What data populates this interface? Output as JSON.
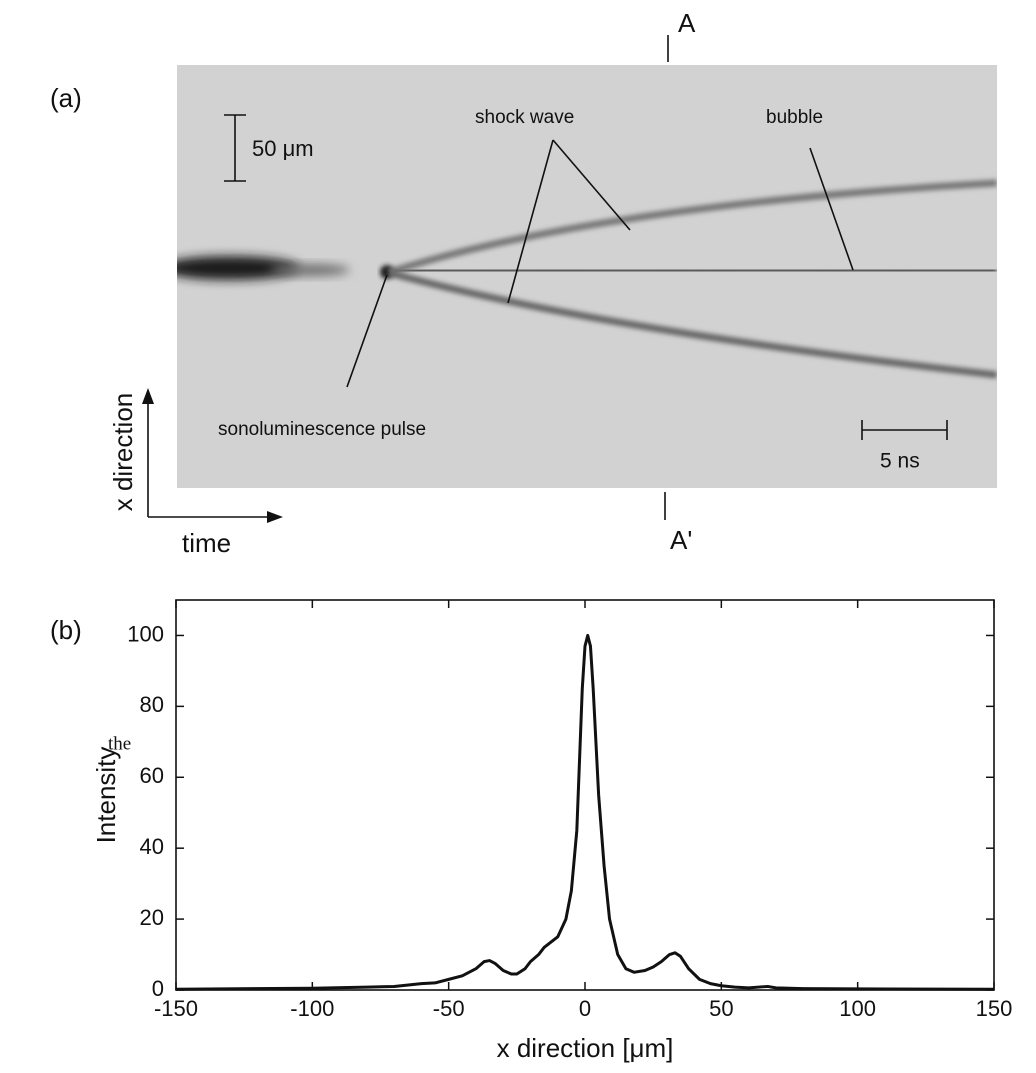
{
  "panel_a": {
    "label": "(a)",
    "marker_top": "A",
    "marker_bottom": "A'",
    "scale_length": "50 μm",
    "scale_time": "5 ns",
    "shock_wave": "shock wave",
    "bubble": "bubble",
    "pulse": "sonoluminescence pulse",
    "axis_x": "x direction",
    "axis_time": "time"
  },
  "margin_text": "the",
  "chart_data": {
    "type": "line",
    "panel_label": "(b)",
    "x_label": "x direction [μm]",
    "y_label": "Intensity",
    "color": "#111111",
    "x": [
      -150,
      -100,
      -80,
      -70,
      -60,
      -55,
      -50,
      -45,
      -40,
      -37,
      -35,
      -33,
      -30,
      -27,
      -25,
      -22,
      -20,
      -17,
      -15,
      -10,
      -7,
      -5,
      -3,
      -2,
      -1,
      0,
      1,
      2,
      3,
      4,
      5,
      7,
      9,
      12,
      15,
      18,
      22,
      25,
      28,
      31,
      33,
      35,
      38,
      42,
      46,
      50,
      55,
      60,
      65,
      67,
      70,
      80,
      100,
      150
    ],
    "values": [
      0.2,
      0.5,
      0.8,
      1,
      1.8,
      2,
      3,
      4,
      6,
      8,
      8.3,
      7.5,
      5.5,
      4.5,
      4.5,
      6,
      8,
      10,
      12,
      15,
      20,
      28,
      45,
      65,
      85,
      97,
      100,
      97,
      85,
      70,
      55,
      35,
      20,
      10,
      6,
      5,
      5.5,
      6.5,
      8,
      10,
      10.5,
      9.5,
      6,
      3,
      1.8,
      1.2,
      0.8,
      0.6,
      0.9,
      1,
      0.6,
      0.4,
      0.3,
      0.2
    ],
    "xlim": [
      -150,
      150
    ],
    "ylim": [
      0,
      110
    ],
    "xticks": [
      -150,
      -100,
      -50,
      0,
      50,
      100,
      150
    ],
    "yticks": [
      0,
      20,
      40,
      60,
      80,
      100
    ]
  }
}
